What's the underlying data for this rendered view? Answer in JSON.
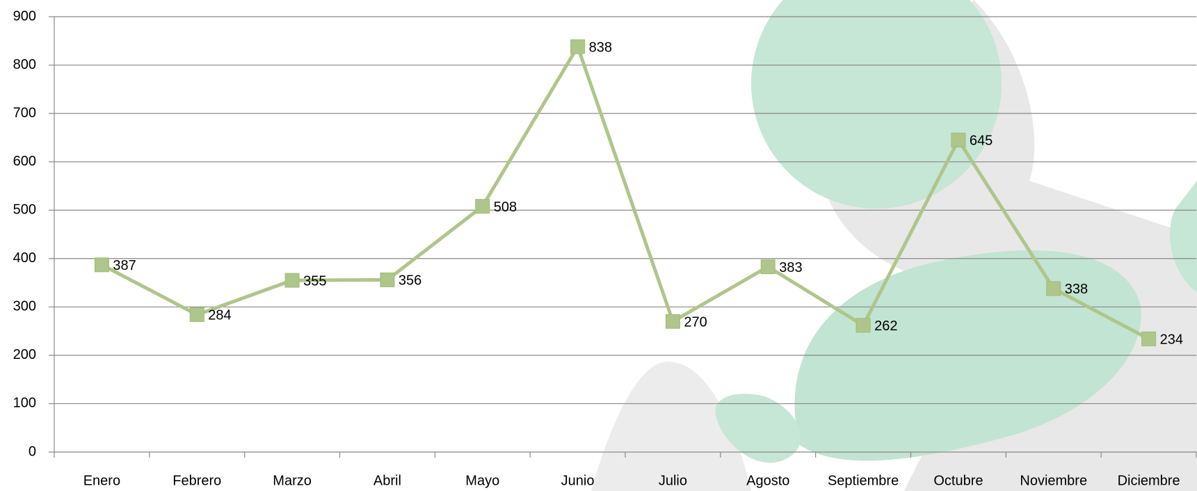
{
  "chart_data": {
    "type": "line",
    "categories": [
      "Enero",
      "Febrero",
      "Marzo",
      "Abril",
      "Mayo",
      "Junio",
      "Julio",
      "Agosto",
      "Septiembre",
      "Octubre",
      "Noviembre",
      "Diciembre"
    ],
    "values": [
      387,
      284,
      355,
      356,
      508,
      838,
      270,
      383,
      262,
      645,
      338,
      234
    ],
    "color": "#aec68a",
    "ylim": [
      0,
      900
    ],
    "yticks": [
      0,
      100,
      200,
      300,
      400,
      500,
      600,
      700,
      800,
      900
    ],
    "grid": true
  }
}
